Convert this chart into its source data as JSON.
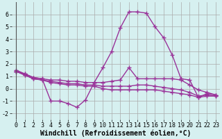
{
  "x": [
    0,
    1,
    2,
    3,
    4,
    5,
    6,
    7,
    8,
    9,
    10,
    11,
    12,
    13,
    14,
    15,
    16,
    17,
    18,
    19,
    20,
    21,
    22,
    23
  ],
  "line1": [
    1.5,
    1.2,
    0.9,
    0.8,
    -1.0,
    -1.0,
    -1.2,
    -1.5,
    -0.9,
    0.5,
    1.7,
    3.0,
    4.9,
    6.2,
    6.2,
    6.1,
    5.0,
    4.1,
    2.7,
    0.8,
    0.7,
    -0.7,
    -0.4,
    -0.5
  ],
  "line2": [
    1.4,
    1.2,
    0.9,
    0.8,
    0.7,
    0.7,
    0.6,
    0.6,
    0.5,
    0.5,
    0.5,
    0.6,
    0.7,
    1.7,
    0.8,
    0.8,
    0.8,
    0.8,
    0.8,
    0.7,
    0.3,
    -0.1,
    -0.3,
    -0.5
  ],
  "line3": [
    1.4,
    1.1,
    0.8,
    0.7,
    0.6,
    0.5,
    0.4,
    0.4,
    0.3,
    0.3,
    0.2,
    0.2,
    0.2,
    0.2,
    0.3,
    0.3,
    0.2,
    0.1,
    0.0,
    -0.1,
    -0.3,
    -0.6,
    -0.5,
    -0.6
  ],
  "line4": [
    1.4,
    1.1,
    0.8,
    0.7,
    0.5,
    0.4,
    0.3,
    0.3,
    0.2,
    0.2,
    0.0,
    -0.1,
    -0.1,
    -0.1,
    -0.1,
    -0.1,
    -0.1,
    -0.2,
    -0.3,
    -0.4,
    -0.5,
    -0.7,
    -0.6,
    -0.6
  ],
  "color": "#993399",
  "bg_color": "#d6f0f0",
  "grid_color": "#aaaaaa",
  "xlabel": "Windchill (Refroidissement éolien,°C)",
  "xlim": [
    -0.5,
    23.5
  ],
  "ylim": [
    -2.5,
    7.0
  ],
  "yticks": [
    -2,
    -1,
    0,
    1,
    2,
    3,
    4,
    5,
    6
  ],
  "xticks": [
    0,
    1,
    2,
    3,
    4,
    5,
    6,
    7,
    8,
    9,
    10,
    11,
    12,
    13,
    14,
    15,
    16,
    17,
    18,
    19,
    20,
    21,
    22,
    23
  ],
  "marker": "+",
  "linewidth": 1.0,
  "markersize": 4,
  "xlabel_fontsize": 7,
  "tick_fontsize": 6
}
